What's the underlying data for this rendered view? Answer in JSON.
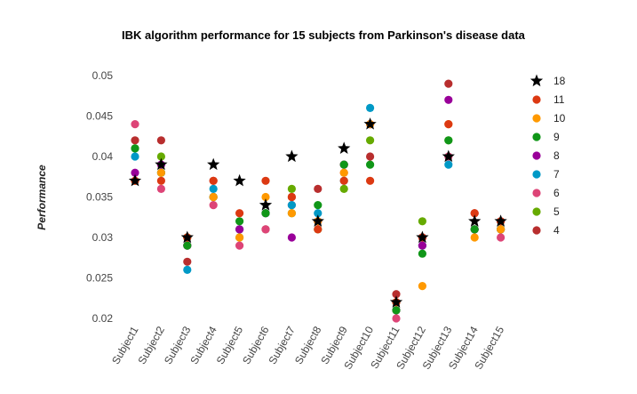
{
  "chart_data": {
    "type": "scatter",
    "title": "IBK algorithm performance for 15 subjects from Parkinson's disease data",
    "xlabel": "",
    "ylabel": "Performance",
    "ylim": [
      0.02,
      0.05
    ],
    "yticks": [
      "0.02",
      "0.025",
      "0.03",
      "0.035",
      "0.04",
      "0.045",
      "0.05"
    ],
    "grid": false,
    "legend_position": "right",
    "categories": [
      "Subject1",
      "Subject2",
      "Subject3",
      "Subject4",
      "Subject5",
      "Subject6",
      "Subject7",
      "Subject8",
      "Subject9",
      "Subject10",
      "Subject11",
      "Subject12",
      "Subject13",
      "Subject14",
      "Subject15"
    ],
    "series": [
      {
        "name": "18",
        "marker": "star",
        "color": "#000000",
        "values": [
          0.037,
          0.039,
          0.03,
          0.039,
          0.037,
          0.034,
          0.04,
          0.032,
          0.041,
          0.044,
          0.022,
          0.03,
          0.04,
          0.032,
          0.032
        ]
      },
      {
        "name": "11",
        "marker": "circle",
        "color": "#dc3912",
        "values": [
          0.037,
          0.037,
          0.03,
          0.037,
          0.033,
          0.037,
          0.035,
          0.031,
          0.037,
          0.037,
          0.022,
          0.03,
          0.044,
          0.033,
          0.032
        ]
      },
      {
        "name": "10",
        "marker": "circle",
        "color": "#ff9900",
        "values": [
          0.037,
          0.038,
          0.03,
          0.035,
          0.03,
          0.035,
          0.033,
          0.032,
          0.038,
          0.044,
          0.022,
          0.024,
          0.044,
          0.03,
          0.031
        ]
      },
      {
        "name": "9",
        "marker": "circle",
        "color": "#109618",
        "values": [
          0.041,
          0.038,
          0.029,
          0.035,
          0.032,
          0.033,
          0.033,
          0.034,
          0.039,
          0.039,
          0.021,
          0.028,
          0.042,
          0.031,
          0.031
        ]
      },
      {
        "name": "8",
        "marker": "circle",
        "color": "#990099",
        "values": [
          0.038,
          0.039,
          0.029,
          0.035,
          0.031,
          0.033,
          0.03,
          0.032,
          0.039,
          0.044,
          0.021,
          0.029,
          0.047,
          0.031,
          0.031
        ]
      },
      {
        "name": "7",
        "marker": "circle",
        "color": "#0099c6",
        "values": [
          0.04,
          0.038,
          0.026,
          0.036,
          0.031,
          0.033,
          0.034,
          0.033,
          0.037,
          0.046,
          0.022,
          0.029,
          0.039,
          0.031,
          0.031
        ]
      },
      {
        "name": "6",
        "marker": "circle",
        "color": "#dd4477",
        "values": [
          0.044,
          0.036,
          0.029,
          0.034,
          0.029,
          0.031,
          0.034,
          0.032,
          0.038,
          0.044,
          0.02,
          0.03,
          0.04,
          0.031,
          0.03
        ]
      },
      {
        "name": "5",
        "marker": "circle",
        "color": "#66aa00",
        "values": [
          0.041,
          0.04,
          0.03,
          0.035,
          0.03,
          0.033,
          0.036,
          0.031,
          0.036,
          0.042,
          0.021,
          0.032,
          0.042,
          0.031,
          0.031
        ]
      },
      {
        "name": "4",
        "marker": "circle",
        "color": "#b82e2e",
        "values": [
          0.042,
          0.042,
          0.027,
          0.037,
          0.031,
          0.031,
          0.035,
          0.036,
          0.039,
          0.04,
          0.023,
          0.03,
          0.049,
          0.033,
          0.032
        ]
      }
    ]
  }
}
